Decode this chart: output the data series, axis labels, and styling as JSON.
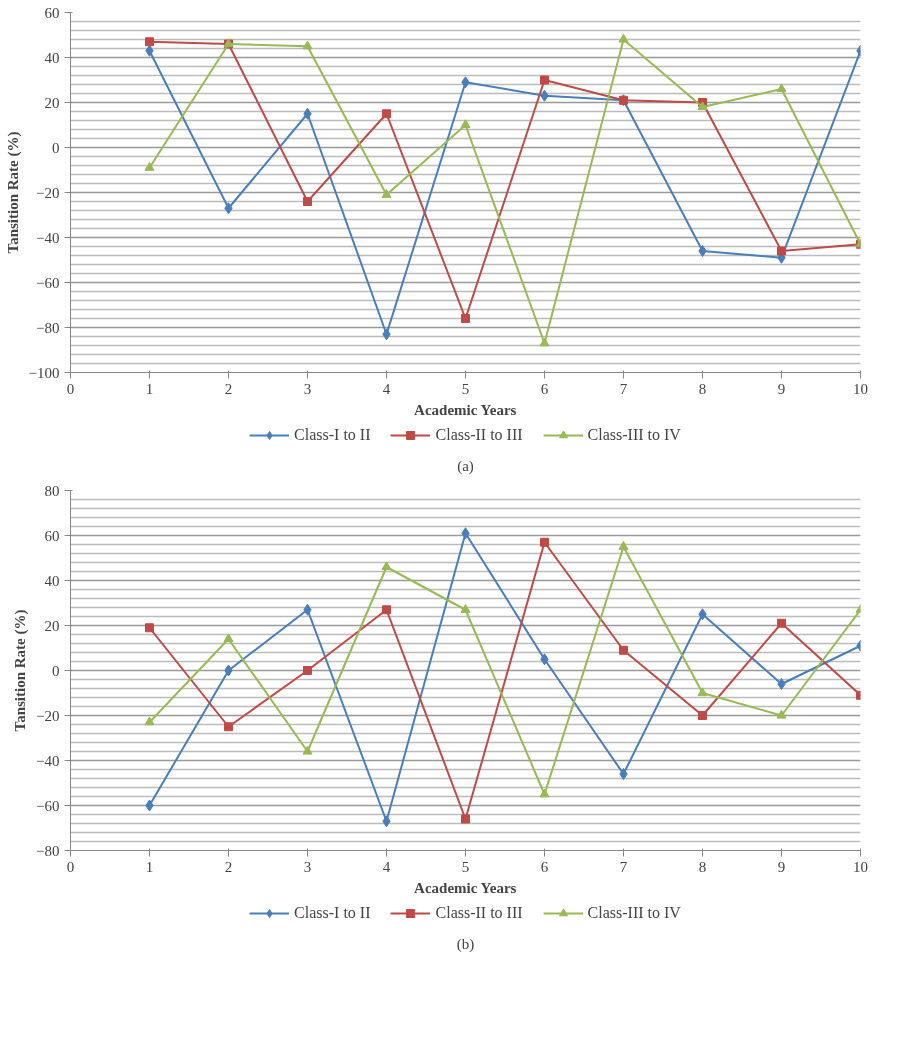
{
  "chart_data": [
    {
      "type": "line",
      "title": "(a)",
      "xlabel": "Academic Years",
      "ylabel": "Tansition Rate (%)",
      "x": [
        1,
        2,
        3,
        4,
        5,
        6,
        7,
        8,
        9,
        10
      ],
      "xlim": [
        0,
        10
      ],
      "xticks": [
        0,
        1,
        2,
        3,
        4,
        5,
        6,
        7,
        8,
        9,
        10
      ],
      "ylim": [
        -100,
        60
      ],
      "yticks": [
        -100,
        -80,
        -60,
        -40,
        -20,
        0,
        20,
        40,
        60
      ],
      "grid": "y",
      "legend": "bottom",
      "series": [
        {
          "name": "Class-I to II",
          "color": "#4a7ebb",
          "marker": "diamond",
          "values": [
            43,
            -27,
            15,
            -83,
            29,
            23,
            21,
            -46,
            -49,
            43
          ]
        },
        {
          "name": "Class-II to III",
          "color": "#be4b48",
          "marker": "square",
          "values": [
            47,
            46,
            -24,
            15,
            -76,
            30,
            21,
            20,
            -46,
            -43
          ]
        },
        {
          "name": "Class-III to IV",
          "color": "#98b954",
          "marker": "triangle",
          "values": [
            -9,
            46,
            45,
            -21,
            10,
            -87,
            48,
            18,
            26,
            -43
          ]
        }
      ]
    },
    {
      "type": "line",
      "title": "(b)",
      "xlabel": "Academic Years",
      "ylabel": "Tansition Rate (%)",
      "x": [
        1,
        2,
        3,
        4,
        5,
        6,
        7,
        8,
        9,
        10
      ],
      "xlim": [
        0,
        10
      ],
      "xticks": [
        0,
        1,
        2,
        3,
        4,
        5,
        6,
        7,
        8,
        9,
        10
      ],
      "ylim": [
        -80,
        80
      ],
      "yticks": [
        -80,
        -60,
        -40,
        -20,
        0,
        20,
        40,
        60,
        80
      ],
      "grid": "y",
      "legend": "bottom",
      "series": [
        {
          "name": "Class-I to II",
          "color": "#4a7ebb",
          "marker": "diamond",
          "values": [
            -60,
            0,
            27,
            -67,
            61,
            5,
            -46,
            25,
            -6,
            11
          ]
        },
        {
          "name": "Class-II to III",
          "color": "#be4b48",
          "marker": "square",
          "values": [
            19,
            -25,
            0,
            27,
            -66,
            57,
            9,
            -20,
            21,
            -11
          ]
        },
        {
          "name": "Class-III to IV",
          "color": "#98b954",
          "marker": "triangle",
          "values": [
            -23,
            14,
            -36,
            46,
            27,
            -55,
            55,
            -10,
            -20,
            27
          ]
        }
      ]
    }
  ]
}
